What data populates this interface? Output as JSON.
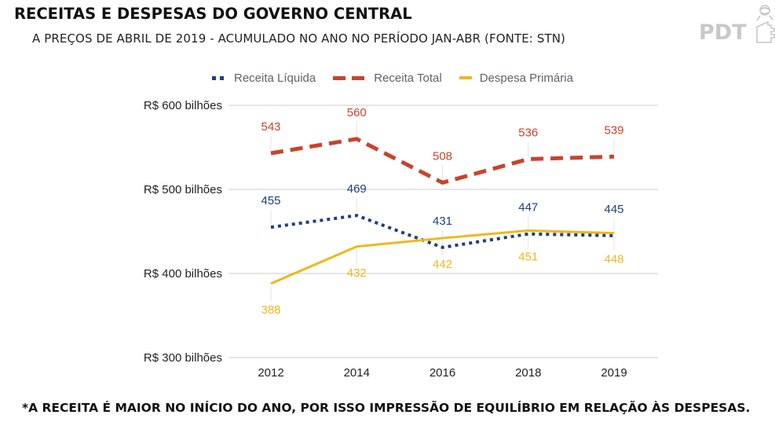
{
  "header": {
    "title": "RECEITAS E DESPESAS DO GOVERNO CENTRAL",
    "subtitle": "A PREÇOS DE ABRIL DE 2019 - ACUMULADO NO ANO NO PERÍODO JAN-ABR (FONTE: STN)"
  },
  "logo": {
    "text": "PDT",
    "icon": "hand-with-rose-icon"
  },
  "footer": {
    "note": "*A RECEITA É MAIOR NO INÍCIO DO ANO, POR ISSO IMPRESSÃO DE EQUILÍBRIO EM RELAÇÃO ÀS DESPESAS."
  },
  "chart_data": {
    "type": "line",
    "title": "RECEITAS E DESPESAS DO GOVERNO CENTRAL",
    "subtitle": "A PREÇOS DE ABRIL DE 2019 - ACUMULADO NO ANO NO PERÍODO JAN-ABR (FONTE: STN)",
    "xlabel": "",
    "ylabel": "",
    "categories": [
      "2012",
      "2014",
      "2016",
      "2018",
      "2019"
    ],
    "ylim": [
      300,
      600
    ],
    "yticks": [
      300,
      400,
      500,
      600
    ],
    "ytick_labels": [
      "R$ 300 bilhões",
      "R$ 400 bilhões",
      "R$ 500 bilhões",
      "R$ 600 bilhões"
    ],
    "grid": "horizontal",
    "legend_position": "top",
    "series": [
      {
        "name": "Receita Líquida",
        "values": [
          455,
          469,
          431,
          447,
          445
        ],
        "color": "#1f3f7a",
        "style": "dotted",
        "label_position": "above"
      },
      {
        "name": "Receita Total",
        "values": [
          543,
          560,
          508,
          536,
          539
        ],
        "color": "#c9432b",
        "style": "dashed",
        "label_position": "above"
      },
      {
        "name": "Despesa Primária",
        "values": [
          388,
          432,
          442,
          451,
          448
        ],
        "color": "#f0b81c",
        "style": "solid",
        "label_position": "below"
      }
    ]
  }
}
